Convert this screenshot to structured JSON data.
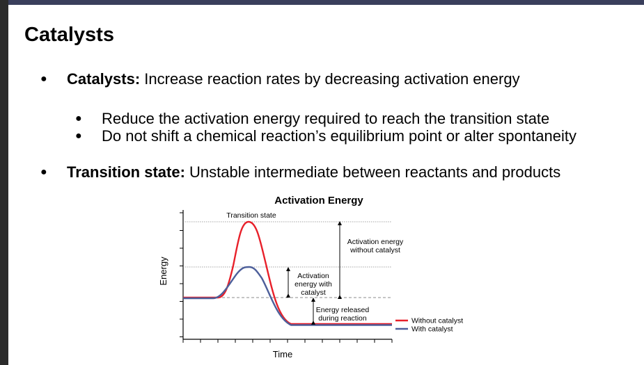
{
  "slide": {
    "title": "Catalysts",
    "bullets": [
      {
        "term": "Catalysts:",
        "text": " Increase reaction rates by decreasing activation energy"
      },
      {
        "term": "Transition state:",
        "text": " Unstable intermediate between reactants and products"
      }
    ],
    "sub_bullets": [
      "Reduce the activation energy required to reach the transition state",
      "Do not shift a chemical reaction’s equilibrium point or alter spontaneity"
    ]
  },
  "figure": {
    "title": "Activation Energy",
    "xlabel": "Time",
    "ylabel": "Energy",
    "labels": {
      "transition_state": "Transition state",
      "ea_without_1": "Activation energy",
      "ea_without_2": "without catalyst",
      "ea_with_1": "Activation",
      "ea_with_2": "energy with",
      "ea_with_3": "catalyst",
      "released_1": "Energy released",
      "released_2": "during reaction"
    },
    "legend": [
      {
        "label": "Without catalyst",
        "color": "#e8202a"
      },
      {
        "label": "With catalyst",
        "color": "#4d5f9a"
      }
    ]
  }
}
